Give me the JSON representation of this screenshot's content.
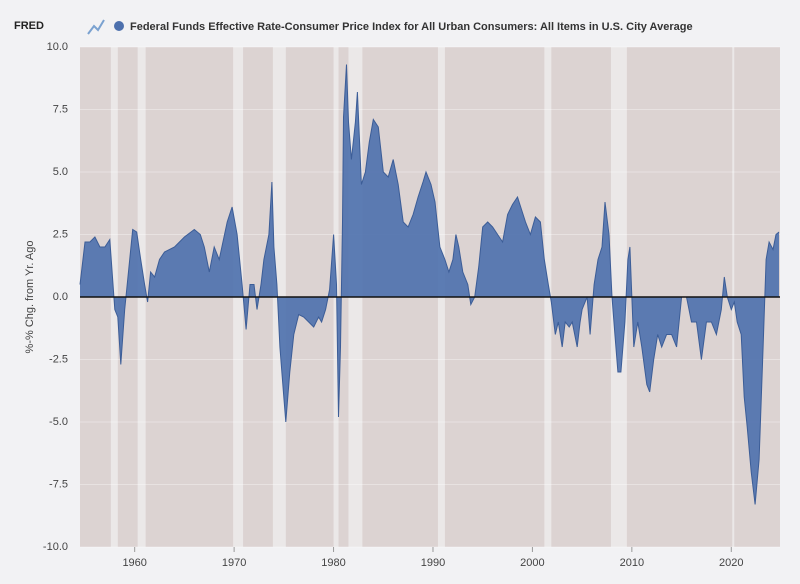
{
  "chart_data": {
    "type": "area",
    "logo": "FRED",
    "title": "Federal Funds Effective Rate-Consumer Price Index for All Urban Consumers: All Items in U.S. City Average",
    "y_label": "%-% Chg. from Yr. Ago",
    "xlim": [
      1954.5,
      2024.9
    ],
    "xticks": [
      1960,
      1970,
      1980,
      1990,
      2000,
      2010,
      2020
    ],
    "ylim": [
      -10,
      10
    ],
    "yticks": [
      {
        "value": -10,
        "label": "-10.0"
      },
      {
        "value": -7.5,
        "label": "-7.5"
      },
      {
        "value": -5,
        "label": "-5.0"
      },
      {
        "value": -2.5,
        "label": "-2.5"
      },
      {
        "value": 0,
        "label": "0.0"
      },
      {
        "value": 2.5,
        "label": "2.5"
      },
      {
        "value": 5,
        "label": "5.0"
      },
      {
        "value": 7.5,
        "label": "7.5"
      },
      {
        "value": 10,
        "label": "10.0"
      }
    ],
    "grid": true,
    "recessions": [
      [
        1957.6,
        1958.3
      ],
      [
        1960.3,
        1961.1
      ],
      [
        1969.9,
        1970.9
      ],
      [
        1973.9,
        1975.2
      ],
      [
        1980.0,
        1980.5
      ],
      [
        1981.5,
        1982.9
      ],
      [
        1990.5,
        1991.2
      ],
      [
        2001.2,
        2001.9
      ],
      [
        2007.9,
        2009.5
      ],
      [
        2020.1,
        2020.3
      ]
    ],
    "series": [
      {
        "name": "Federal Funds Effective Rate-Consumer Price Index for All Urban Consumers: All Items in U.S. City Average",
        "color": "#4d70ad",
        "x": [
          1954.5,
          1955,
          1955.5,
          1956,
          1956.5,
          1957,
          1957.5,
          1958,
          1958.3,
          1958.6,
          1959,
          1959.5,
          1959.8,
          1960.2,
          1960.6,
          1961,
          1961.3,
          1961.6,
          1962,
          1962.5,
          1963,
          1964,
          1965,
          1966,
          1966.6,
          1967,
          1967.5,
          1968,
          1968.5,
          1969.3,
          1969.8,
          1970.3,
          1970.8,
          1971.2,
          1971.6,
          1972,
          1972.3,
          1972.7,
          1973,
          1973.5,
          1973.8,
          1974,
          1974.3,
          1974.6,
          1975,
          1975.2,
          1975.6,
          1976,
          1976.5,
          1977,
          1977.5,
          1978,
          1978.5,
          1978.8,
          1979.2,
          1979.6,
          1980,
          1980.3,
          1980.5,
          1980.7,
          1980.9,
          1981,
          1981.3,
          1981.5,
          1981.8,
          1982.2,
          1982.4,
          1982.8,
          1983.2,
          1983.6,
          1984,
          1984.5,
          1985,
          1985.5,
          1986,
          1986.5,
          1987,
          1987.5,
          1988,
          1988.5,
          1989,
          1989.3,
          1989.8,
          1990.2,
          1990.7,
          1991.2,
          1991.6,
          1992,
          1992.3,
          1992.6,
          1993,
          1993.5,
          1993.8,
          1994.2,
          1994.6,
          1995,
          1995.5,
          1996,
          1996.5,
          1997,
          1997.5,
          1998,
          1998.5,
          1998.9,
          1999.3,
          1999.8,
          2000.3,
          2000.8,
          2001.2,
          2001.6,
          2001.9,
          2002.3,
          2002.6,
          2003,
          2003.3,
          2003.7,
          2004,
          2004.5,
          2004.8,
          2005,
          2005.5,
          2005.8,
          2006.2,
          2006.6,
          2007,
          2007.3,
          2007.7,
          2008,
          2008.3,
          2008.6,
          2008.9,
          2009.3,
          2009.6,
          2009.8,
          2010.2,
          2010.6,
          2011,
          2011.5,
          2011.8,
          2012.2,
          2012.6,
          2013,
          2013.5,
          2014,
          2014.5,
          2015,
          2015.5,
          2016,
          2016.5,
          2017,
          2017.5,
          2018,
          2018.5,
          2019,
          2019.3,
          2019.6,
          2020,
          2020.3,
          2020.6,
          2021,
          2021.3,
          2021.6,
          2022,
          2022.4,
          2022.8,
          2023.2,
          2023.5,
          2023.8,
          2024.2,
          2024.5,
          2024.8
        ],
        "values": [
          0.5,
          2.2,
          2.2,
          2.4,
          2,
          2,
          2.3,
          -0.5,
          -0.8,
          -2.7,
          -0.5,
          1.5,
          2.7,
          2.6,
          1.5,
          0.5,
          -0.2,
          1,
          0.8,
          1.5,
          1.8,
          2,
          2.4,
          2.7,
          2.5,
          2,
          1,
          2,
          1.5,
          3,
          3.6,
          2.5,
          0.5,
          -1.3,
          0.5,
          0.5,
          -0.5,
          0.5,
          1.5,
          2.5,
          4.6,
          2,
          0.5,
          -2,
          -4,
          -5,
          -3,
          -1.5,
          -0.7,
          -0.8,
          -1,
          -1.2,
          -0.8,
          -1,
          -0.5,
          0.3,
          2.5,
          0.5,
          -4.8,
          -2,
          3,
          7.2,
          9.3,
          7,
          5.5,
          7,
          8.2,
          4.5,
          5,
          6.2,
          7.1,
          6.8,
          5,
          4.8,
          5.5,
          4.5,
          3,
          2.8,
          3.3,
          4,
          4.6,
          5,
          4.5,
          3.8,
          2,
          1.5,
          1,
          1.5,
          2.5,
          2,
          1,
          0.5,
          -0.3,
          0,
          1.2,
          2.8,
          3,
          2.8,
          2.5,
          2.2,
          3.3,
          3.7,
          4,
          3.5,
          3,
          2.5,
          3.2,
          3,
          1.5,
          0.5,
          -0.2,
          -1.5,
          -1,
          -2,
          -1,
          -1.2,
          -1,
          -2,
          -1,
          -0.5,
          0,
          -1.5,
          0.5,
          1.5,
          2,
          3.8,
          2.5,
          0,
          -1.5,
          -3,
          -3,
          -1,
          1.5,
          2,
          -2,
          -1,
          -2,
          -3.5,
          -3.8,
          -2.5,
          -1.5,
          -2,
          -1.5,
          -1.5,
          -2,
          0,
          0,
          -1,
          -1,
          -2.5,
          -1,
          -1,
          -1.5,
          -0.5,
          0.8,
          0,
          -0.5,
          -0.2,
          -1,
          -1.5,
          -4,
          -5.2,
          -7,
          -8.3,
          -6.5,
          -2,
          1.5,
          2.2,
          1.9,
          2.5,
          2.6
        ]
      }
    ]
  }
}
